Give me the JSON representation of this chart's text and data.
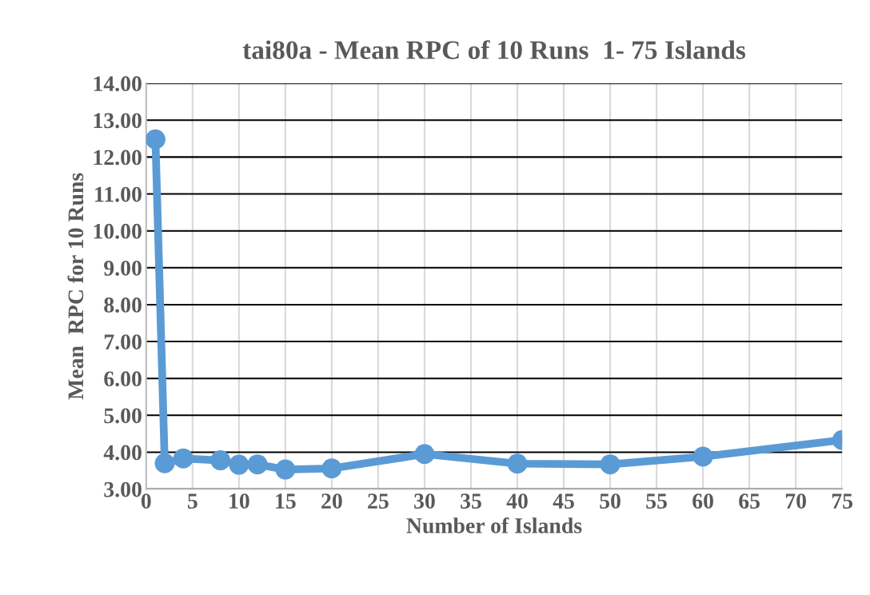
{
  "chart_data": {
    "type": "line",
    "title": "tai80a - Mean RPC of 10 Runs  1- 75 Islands",
    "xlabel": "Number of Islands",
    "ylabel": "Mean  RPC for 10 Runs",
    "x": [
      1,
      2,
      4,
      8,
      10,
      12,
      15,
      20,
      30,
      40,
      50,
      60,
      75
    ],
    "series": [
      {
        "color": "#5b9bd5",
        "values": [
          12.48,
          3.7,
          3.83,
          3.78,
          3.66,
          3.67,
          3.53,
          3.56,
          3.95,
          3.69,
          3.67,
          3.88,
          4.33
        ]
      }
    ],
    "xlim": [
      0,
      75
    ],
    "xticks": [
      0,
      5,
      10,
      15,
      20,
      25,
      30,
      35,
      40,
      45,
      50,
      55,
      60,
      65,
      70,
      75
    ],
    "ylim": [
      3,
      14
    ],
    "yticks": [
      {
        "value": 3,
        "label": "3.00"
      },
      {
        "value": 4,
        "label": "4.00"
      },
      {
        "value": 5,
        "label": "5.00"
      },
      {
        "value": 6,
        "label": "6.00"
      },
      {
        "value": 7,
        "label": "7.00"
      },
      {
        "value": 8,
        "label": "8.00"
      },
      {
        "value": 9,
        "label": "9.00"
      },
      {
        "value": 10,
        "label": "10.00"
      },
      {
        "value": 11,
        "label": "11.00"
      },
      {
        "value": 12,
        "label": "12.00"
      },
      {
        "value": 13,
        "label": "13.00"
      },
      {
        "value": 14,
        "label": "14.00"
      }
    ],
    "grid": true,
    "marker": "circle",
    "line_style": "solid",
    "legend": false
  }
}
